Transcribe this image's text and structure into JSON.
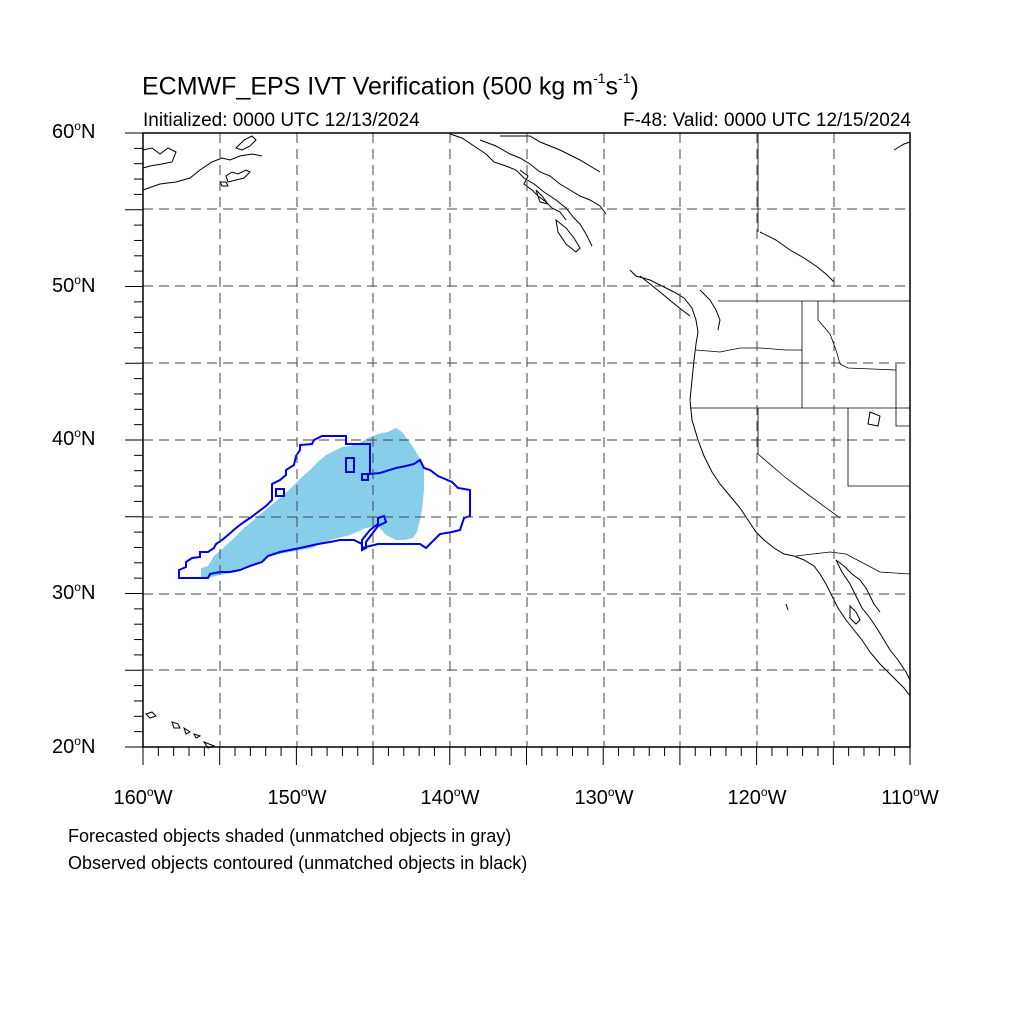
{
  "title": {
    "text_before": "ECMWF_EPS IVT Verification (500 kg m",
    "sup1": "-1",
    "text_mid": "s",
    "sup2": "-1",
    "text_after": ")"
  },
  "initialized": "Initialized: 0000 UTC 12/13/2024",
  "valid": "F-48: Valid: 0000 UTC 12/15/2024",
  "map": {
    "lon_range": [
      -160,
      -110
    ],
    "lat_range": [
      20,
      60
    ],
    "gridlines": "dashed every 5 degrees",
    "lat_labels": [
      {
        "value": "60",
        "hemi": "N"
      },
      {
        "value": "50",
        "hemi": "N"
      },
      {
        "value": "40",
        "hemi": "N"
      },
      {
        "value": "30",
        "hemi": "N"
      },
      {
        "value": "20",
        "hemi": "N"
      }
    ],
    "lon_labels": [
      {
        "value": "160",
        "hemi": "W"
      },
      {
        "value": "150",
        "hemi": "W"
      },
      {
        "value": "140",
        "hemi": "W"
      },
      {
        "value": "130",
        "hemi": "W"
      },
      {
        "value": "120",
        "hemi": "W"
      },
      {
        "value": "110",
        "hemi": "W"
      }
    ],
    "forecast_fill_color": "#87ceeb",
    "observed_contour_color": "#0000ee",
    "coast_color": "#000000"
  },
  "captions": [
    "Forecasted objects shaded (unmatched objects in gray)",
    "Observed objects contoured (unmatched objects in black)"
  ]
}
